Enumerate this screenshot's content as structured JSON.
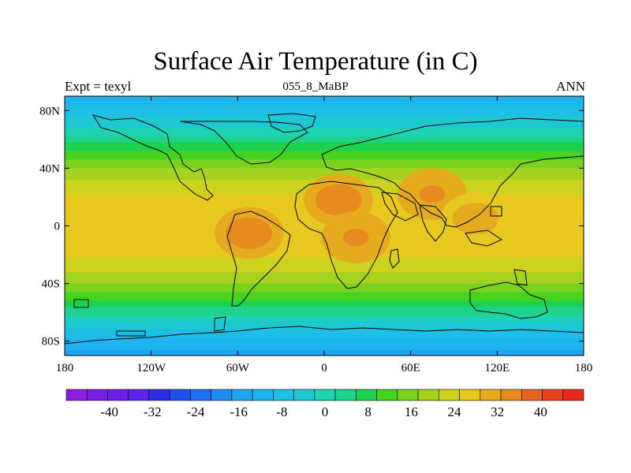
{
  "title": "Surface Air Temperature (in C)",
  "left_label": "Expt = texyl",
  "center_label": "055_8_MaBP",
  "right_label": "ANN",
  "chart_data": {
    "type": "heatmap",
    "variable": "Surface Air Temperature",
    "units": "C",
    "x_range": [
      -180,
      180
    ],
    "y_range": [
      -90,
      90
    ],
    "x_ticks": [
      {
        "value": -180,
        "label": "180"
      },
      {
        "value": -120,
        "label": "120W"
      },
      {
        "value": -60,
        "label": "60W"
      },
      {
        "value": 0,
        "label": "0"
      },
      {
        "value": 60,
        "label": "60E"
      },
      {
        "value": 120,
        "label": "120E"
      },
      {
        "value": 180,
        "label": "180"
      }
    ],
    "y_ticks": [
      {
        "value": 80,
        "label": "80N"
      },
      {
        "value": 40,
        "label": "40N"
      },
      {
        "value": 0,
        "label": "0"
      },
      {
        "value": -40,
        "label": "40S"
      },
      {
        "value": -80,
        "label": "80S"
      }
    ],
    "zonal_mean_profile": [
      {
        "lat": -90,
        "temp": -14
      },
      {
        "lat": -80,
        "temp": -10
      },
      {
        "lat": -70,
        "temp": -3
      },
      {
        "lat": -60,
        "temp": 5
      },
      {
        "lat": -50,
        "temp": 13
      },
      {
        "lat": -40,
        "temp": 20
      },
      {
        "lat": -30,
        "temp": 25
      },
      {
        "lat": -20,
        "temp": 29
      },
      {
        "lat": -10,
        "temp": 31
      },
      {
        "lat": 0,
        "temp": 32
      },
      {
        "lat": 10,
        "temp": 31
      },
      {
        "lat": 20,
        "temp": 29
      },
      {
        "lat": 30,
        "temp": 25
      },
      {
        "lat": 40,
        "temp": 20
      },
      {
        "lat": 50,
        "temp": 13
      },
      {
        "lat": 60,
        "temp": 6
      },
      {
        "lat": 70,
        "temp": -1
      },
      {
        "lat": 80,
        "temp": -7
      },
      {
        "lat": 90,
        "temp": -10
      }
    ],
    "hot_spots": [
      {
        "region": "South America",
        "lon": -52,
        "lat": -5,
        "temp": 38
      },
      {
        "region": "North Africa",
        "lon": 10,
        "lat": 18,
        "temp": 38
      },
      {
        "region": "Central Africa",
        "lon": 22,
        "lat": -8,
        "temp": 36
      },
      {
        "region": "South Asia",
        "lon": 75,
        "lat": 22,
        "temp": 36
      },
      {
        "region": "Southeast Asia",
        "lon": 105,
        "lat": 5,
        "temp": 35
      }
    ],
    "colorbar": {
      "min": -48,
      "max": 48,
      "step": 4,
      "tick_labels": [
        "-40",
        "-32",
        "-24",
        "-16",
        "-8",
        "0",
        "8",
        "16",
        "24",
        "32",
        "40"
      ],
      "colors": [
        "#8c1ee0",
        "#7a1ee4",
        "#6a1ee8",
        "#5a22ec",
        "#2d2de6",
        "#1e50f0",
        "#1e6ef0",
        "#1e8cf0",
        "#1ea5f0",
        "#1eb4f0",
        "#1ebee6",
        "#1ec8d2",
        "#1ed2b4",
        "#1ed28c",
        "#1ed250",
        "#46d21e",
        "#78d21e",
        "#a5d21e",
        "#cdd21e",
        "#e6c81e",
        "#e6aa1e",
        "#e68c1e",
        "#e6641e",
        "#e6461e",
        "#e6281e"
      ]
    }
  }
}
